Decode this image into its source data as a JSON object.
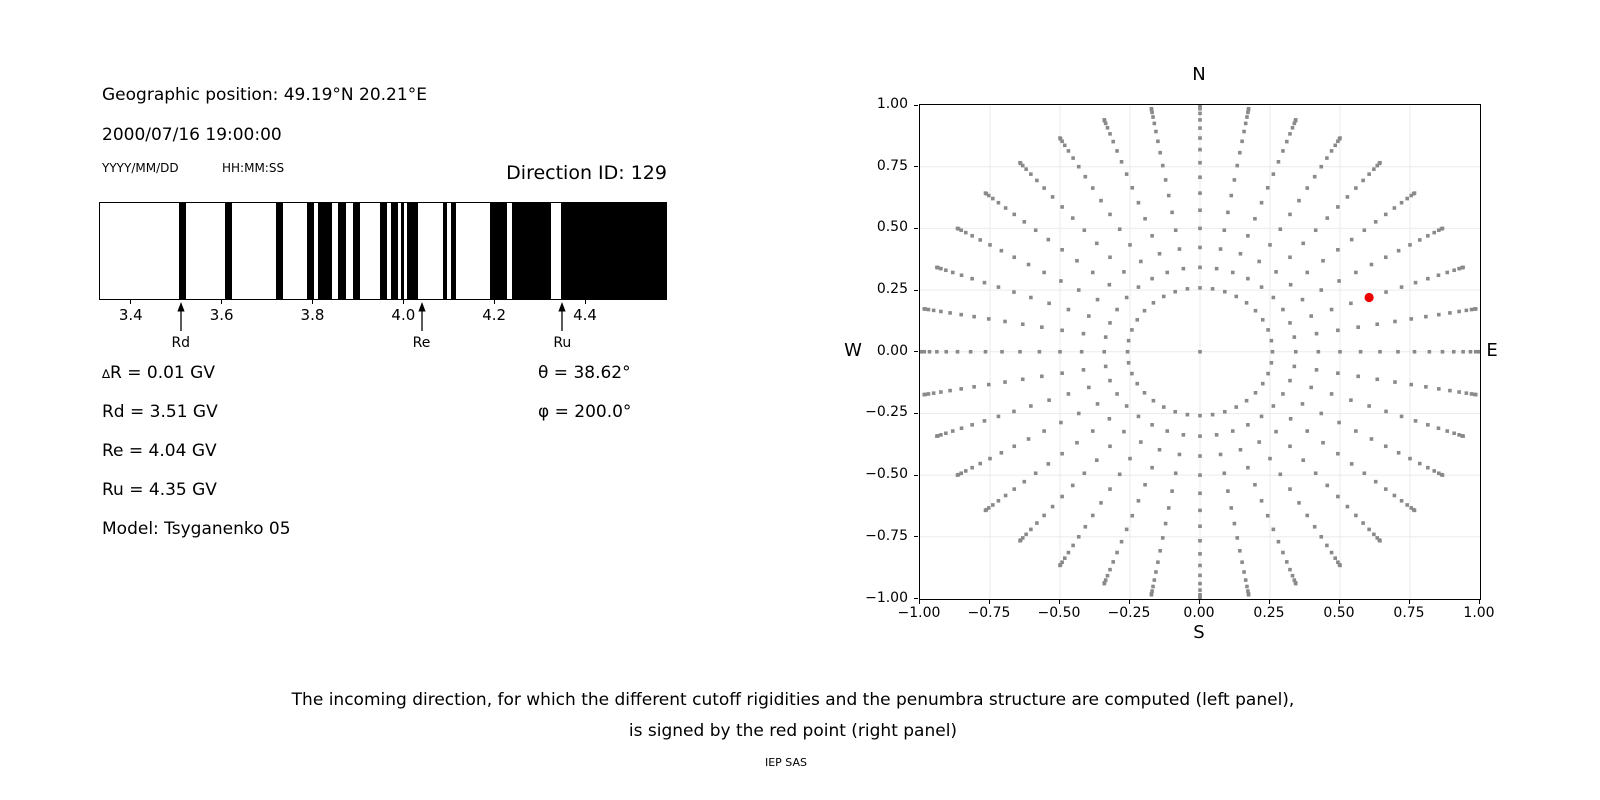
{
  "info": {
    "geo_position": "Geographic position: 49.19°N 20.21°E",
    "datetime": "2000/07/16 19:00:00",
    "date_format": "YYYY/MM/DD",
    "time_format": "HH:MM:SS",
    "direction_id": "Direction ID: 129"
  },
  "readouts": {
    "delta_symbol": "∆",
    "delta_rest": "R = 0.01 GV",
    "rd": "Rd = 3.51 GV",
    "re": "Re = 4.04 GV",
    "ru": "Ru = 4.35 GV",
    "model": "Model: Tsyganenko 05",
    "theta": "θ = 38.62°",
    "phi": "φ = 200.0°"
  },
  "colors": {
    "bar": "#000000",
    "dot": "#8a8a8a",
    "red": "#ee0000",
    "grid": "#ebebeb"
  },
  "chart_data": [
    {
      "type": "bar",
      "kind": "cutoff-penumbra-barcode",
      "x_range": [
        3.33,
        4.576
      ],
      "x_ticks": [
        3.4,
        3.6,
        3.8,
        4.0,
        4.2,
        4.4
      ],
      "bars_gv": [
        [
          3.505,
          3.52
        ],
        [
          3.606,
          3.62
        ],
        [
          3.717,
          3.733
        ],
        [
          3.785,
          3.801
        ],
        [
          3.81,
          3.841
        ],
        [
          3.855,
          3.872
        ],
        [
          3.887,
          3.902
        ],
        [
          3.946,
          3.962
        ],
        [
          3.97,
          3.985
        ],
        [
          3.992,
          4.0
        ],
        [
          4.006,
          4.031
        ],
        [
          4.086,
          4.094
        ],
        [
          4.102,
          4.114
        ],
        [
          4.189,
          4.227
        ],
        [
          4.238,
          4.323
        ],
        [
          4.344,
          4.576
        ]
      ],
      "markers": [
        {
          "label": "Rd",
          "gv": 3.51
        },
        {
          "label": "Re",
          "gv": 4.04
        },
        {
          "label": "Ru",
          "gv": 4.35
        }
      ]
    },
    {
      "type": "scatter",
      "kind": "incoming-directions-map",
      "xlim": [
        -1.0,
        1.0
      ],
      "ylim": [
        -1.0,
        1.0
      ],
      "x_ticks": [
        -1.0,
        -0.75,
        -0.5,
        -0.25,
        0.0,
        0.25,
        0.5,
        0.75,
        1.0
      ],
      "y_ticks": [
        -1.0,
        -0.75,
        -0.5,
        -0.25,
        0.0,
        0.25,
        0.5,
        0.75,
        1.0
      ],
      "grid": true,
      "compass": {
        "top": "N",
        "bottom": "S",
        "left": "W",
        "right": "E"
      },
      "directions_grid": {
        "azimuth_deg_start": 0,
        "azimuth_deg_stop": 350,
        "azimuth_deg_step": 10,
        "zenith_deg_start": 15,
        "zenith_deg_stop": 90,
        "zenith_deg_step": 5,
        "radius_rule": "sin(zenith)",
        "center_point": true
      },
      "selected_direction": {
        "x": 0.604,
        "y": 0.22
      }
    }
  ],
  "caption": {
    "line1": "The incoming direction, for which the different cutoff rigidities and the penumbra structure are computed (left panel),",
    "line2": "is signed by the red point (right panel)"
  },
  "credit": "IEP SAS"
}
